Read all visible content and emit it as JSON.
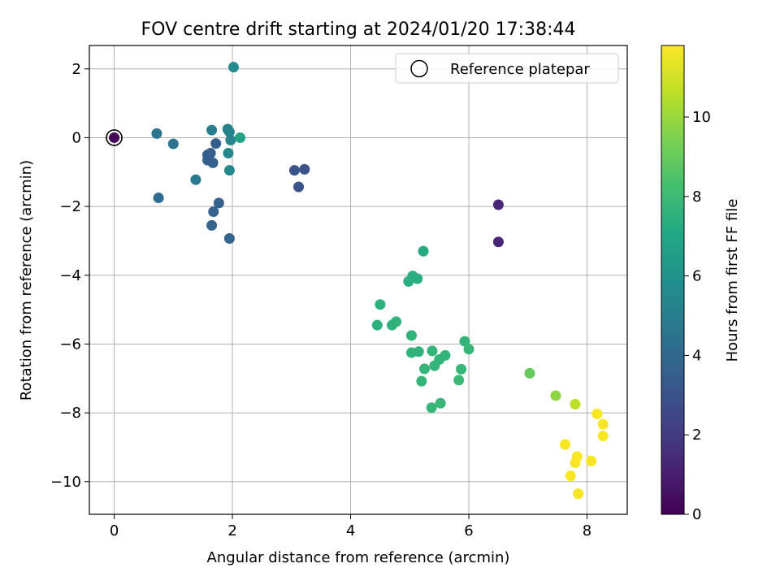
{
  "chart_data": {
    "type": "scatter",
    "title": "FOV centre drift starting at 2024/01/20 17:38:44",
    "xlabel": "Angular distance from reference (arcmin)",
    "ylabel": "Rotation from reference (arcmin)",
    "colorbar_label": "Hours from first FF file",
    "xlim": [
      -0.42,
      8.68
    ],
    "ylim": [
      -10.95,
      2.68
    ],
    "clim": [
      0,
      11.8
    ],
    "xticks": [
      "0",
      "2",
      "4",
      "6",
      "8"
    ],
    "yticks": [
      "2",
      "0",
      "−2",
      "−4",
      "−6",
      "−8",
      "−10"
    ],
    "cticks": [
      "0",
      "2",
      "4",
      "6",
      "8",
      "10"
    ],
    "grid": true,
    "legend_position": "top-right",
    "legend": [
      {
        "label": "Reference platepar",
        "marker": "open-circle"
      }
    ],
    "colormap": "viridis",
    "reference_point": {
      "x": 0,
      "y": 0
    },
    "points": [
      {
        "x": 0.0,
        "y": 0.0,
        "c": 0.1
      },
      {
        "x": 6.5,
        "y": -1.95,
        "c": 1.2
      },
      {
        "x": 6.5,
        "y": -3.03,
        "c": 1.2
      },
      {
        "x": 3.05,
        "y": -0.95,
        "c": 3.0
      },
      {
        "x": 3.22,
        "y": -0.92,
        "c": 3.0
      },
      {
        "x": 3.12,
        "y": -1.43,
        "c": 3.0
      },
      {
        "x": 1.72,
        "y": -0.17,
        "c": 3.5
      },
      {
        "x": 1.58,
        "y": -0.5,
        "c": 3.5
      },
      {
        "x": 1.63,
        "y": -0.45,
        "c": 3.5
      },
      {
        "x": 1.58,
        "y": -0.65,
        "c": 3.6
      },
      {
        "x": 1.67,
        "y": -0.73,
        "c": 3.6
      },
      {
        "x": 1.77,
        "y": -1.9,
        "c": 3.7
      },
      {
        "x": 1.68,
        "y": -2.15,
        "c": 3.7
      },
      {
        "x": 1.65,
        "y": -2.55,
        "c": 3.8
      },
      {
        "x": 1.95,
        "y": -2.93,
        "c": 3.8
      },
      {
        "x": 0.75,
        "y": -1.75,
        "c": 4.2
      },
      {
        "x": 1.0,
        "y": -0.18,
        "c": 4.5
      },
      {
        "x": 0.72,
        "y": 0.12,
        "c": 4.6
      },
      {
        "x": 1.38,
        "y": -1.22,
        "c": 4.8
      },
      {
        "x": 1.65,
        "y": 0.22,
        "c": 5.0
      },
      {
        "x": 1.92,
        "y": 0.25,
        "c": 5.1
      },
      {
        "x": 1.95,
        "y": 0.17,
        "c": 5.2
      },
      {
        "x": 1.97,
        "y": -0.07,
        "c": 5.3
      },
      {
        "x": 1.93,
        "y": -0.45,
        "c": 5.4
      },
      {
        "x": 1.95,
        "y": -0.95,
        "c": 5.5
      },
      {
        "x": 2.02,
        "y": 2.05,
        "c": 5.6
      },
      {
        "x": 2.13,
        "y": 0.0,
        "c": 6.8
      },
      {
        "x": 5.23,
        "y": -3.3,
        "c": 7.2
      },
      {
        "x": 5.05,
        "y": -4.02,
        "c": 7.4
      },
      {
        "x": 5.13,
        "y": -4.1,
        "c": 7.4
      },
      {
        "x": 4.98,
        "y": -4.18,
        "c": 7.4
      },
      {
        "x": 4.5,
        "y": -4.85,
        "c": 7.5
      },
      {
        "x": 4.45,
        "y": -5.45,
        "c": 7.5
      },
      {
        "x": 4.7,
        "y": -5.45,
        "c": 7.6
      },
      {
        "x": 4.77,
        "y": -5.35,
        "c": 7.6
      },
      {
        "x": 5.03,
        "y": -5.75,
        "c": 7.6
      },
      {
        "x": 5.03,
        "y": -6.25,
        "c": 7.6
      },
      {
        "x": 5.15,
        "y": -6.22,
        "c": 7.6
      },
      {
        "x": 5.38,
        "y": -6.2,
        "c": 7.7
      },
      {
        "x": 5.25,
        "y": -6.72,
        "c": 7.7
      },
      {
        "x": 5.2,
        "y": -7.08,
        "c": 7.7
      },
      {
        "x": 5.42,
        "y": -6.63,
        "c": 7.7
      },
      {
        "x": 5.5,
        "y": -6.45,
        "c": 7.7
      },
      {
        "x": 5.6,
        "y": -6.33,
        "c": 7.7
      },
      {
        "x": 5.93,
        "y": -5.92,
        "c": 7.7
      },
      {
        "x": 6.0,
        "y": -6.15,
        "c": 7.8
      },
      {
        "x": 5.87,
        "y": -6.73,
        "c": 7.8
      },
      {
        "x": 5.83,
        "y": -7.05,
        "c": 7.9
      },
      {
        "x": 5.52,
        "y": -7.72,
        "c": 7.8
      },
      {
        "x": 5.37,
        "y": -7.85,
        "c": 7.8
      },
      {
        "x": 7.03,
        "y": -6.85,
        "c": 9.0
      },
      {
        "x": 7.47,
        "y": -7.5,
        "c": 9.8
      },
      {
        "x": 7.8,
        "y": -7.75,
        "c": 10.6
      },
      {
        "x": 8.17,
        "y": -8.03,
        "c": 11.7
      },
      {
        "x": 8.27,
        "y": -8.33,
        "c": 11.7
      },
      {
        "x": 8.27,
        "y": -8.67,
        "c": 11.7
      },
      {
        "x": 7.63,
        "y": -8.92,
        "c": 11.7
      },
      {
        "x": 7.83,
        "y": -9.27,
        "c": 11.7
      },
      {
        "x": 7.8,
        "y": -9.45,
        "c": 11.7
      },
      {
        "x": 8.07,
        "y": -9.4,
        "c": 11.7
      },
      {
        "x": 7.72,
        "y": -9.83,
        "c": 11.7
      },
      {
        "x": 7.85,
        "y": -10.35,
        "c": 11.7
      }
    ]
  }
}
